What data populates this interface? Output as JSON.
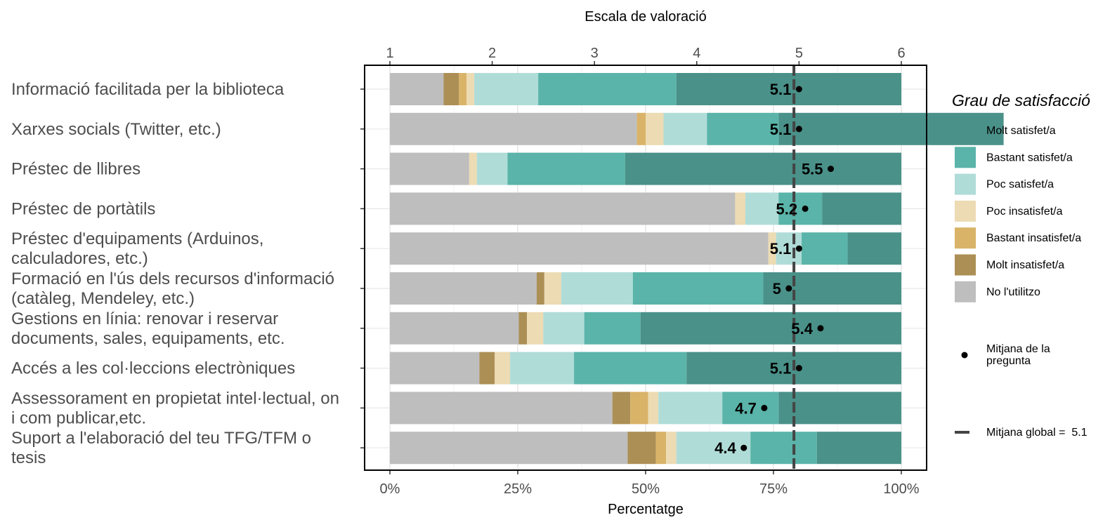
{
  "chart_data": {
    "type": "bar",
    "orientation": "horizontal",
    "stacked": true,
    "xlabel": "Percentatge",
    "x2label": "Escala de valoració",
    "xticks": [
      "0%",
      "25%",
      "50%",
      "75%",
      "100%"
    ],
    "x2ticks": [
      "1",
      "2",
      "3",
      "4",
      "5",
      "6"
    ],
    "x2lim": [
      1,
      6
    ],
    "legend_title": "Grau de satisfacció",
    "legend_position": "right",
    "grid": true,
    "categories": [
      "Informació facilitada per la biblioteca",
      "Xarxes socials (Twitter, etc.)",
      "Préstec de llibres",
      "Préstec de portàtils",
      "Préstec d'equipaments (Arduinos, calculadores, etc.)",
      "Formació en l'ús dels recursos d'informació (catàleg, Mendeley, etc.)",
      "Gestions en línia: renovar i reservar documents, sales, equipaments, etc.",
      "Accés a les col·leccions electròniques",
      "Assessorament en propietat intel·lectual, on i com publicar,etc.",
      "Suport a l'elaboració del teu TFG/TFM o tesis"
    ],
    "segment_order": [
      "No l'utilitzo",
      "Molt insatisfet/a",
      "Bastant insatisfet/a",
      "Poc insatisfet/a",
      "Poc satisfet/a",
      "Bastant satisfet/a",
      "Molt satisfet/a"
    ],
    "series": [
      {
        "name": "Molt satisfet/a",
        "color": "#4a9189",
        "values": [
          44,
          44,
          54,
          15.5,
          10.5,
          27,
          51,
          42,
          24,
          16.5
        ]
      },
      {
        "name": "Bastant satisfet/a",
        "color": "#5ab4a9",
        "values": [
          27,
          14,
          23,
          8.5,
          9,
          25.5,
          11,
          22,
          11,
          13
        ]
      },
      {
        "name": "Poc satisfet/a",
        "color": "#b0dcd8",
        "values": [
          12.5,
          8.5,
          6,
          6.5,
          5,
          14,
          8,
          12.5,
          12.5,
          14.5
        ]
      },
      {
        "name": "Poc insatisfet/a",
        "color": "#ecdbb3",
        "values": [
          1.5,
          3.5,
          1.5,
          2,
          1.5,
          3.3,
          3.2,
          3,
          2,
          2
        ]
      },
      {
        "name": "Bastant insatisfet/a",
        "color": "#d9b368",
        "values": [
          1.5,
          1.7,
          0,
          0,
          0,
          0,
          0,
          0,
          3.5,
          2
        ]
      },
      {
        "name": "Molt insatisfet/a",
        "color": "#ac8f55",
        "values": [
          3,
          0,
          0,
          0,
          0,
          1.5,
          1.6,
          3,
          3.5,
          5.5
        ]
      },
      {
        "name": "No l'utilitzo",
        "color": "#bebebe",
        "values": [
          10.5,
          48.3,
          15.5,
          67.5,
          74,
          28.7,
          25.2,
          17.5,
          43.5,
          46.5
        ]
      }
    ],
    "means": [
      5.1,
      5.1,
      5.5,
      5.2,
      5.1,
      5,
      5.4,
      5.1,
      4.7,
      4.4
    ],
    "mean_positions": [
      5.0,
      5.0,
      5.31,
      5.06,
      5.0,
      4.9,
      5.21,
      5.0,
      4.66,
      4.46
    ],
    "mean_legend_label": "Mitjana de la pregunta",
    "global_mean": 4.95,
    "global_mean_legend_label": "Mitjana global =  5.1"
  }
}
